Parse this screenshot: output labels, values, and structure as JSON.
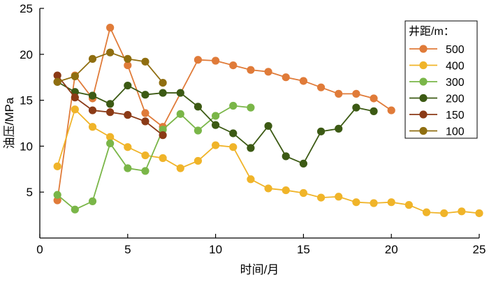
{
  "chart_data": {
    "type": "line",
    "title": "",
    "xlabel": "时间/月",
    "ylabel": "油压/MPa",
    "xlim": [
      0,
      25
    ],
    "ylim": [
      0,
      25
    ],
    "xticks": [
      0,
      5,
      10,
      15,
      20,
      25
    ],
    "yticks": [
      5,
      10,
      15,
      20,
      25
    ],
    "grid": false,
    "legend": {
      "title": "井距/m：",
      "placement": "top-right"
    },
    "series": [
      {
        "name": "500",
        "color": "#e07b39",
        "x": [
          1,
          2,
          3,
          4,
          5,
          6,
          7,
          9,
          10,
          11,
          12,
          13,
          14,
          15,
          16,
          17,
          18,
          19,
          20
        ],
        "y": [
          4.1,
          17.7,
          15.2,
          22.9,
          18.8,
          13.6,
          12.1,
          19.4,
          19.3,
          18.8,
          18.3,
          18.1,
          17.5,
          17.1,
          16.4,
          15.7,
          15.7,
          15.2,
          13.9
        ]
      },
      {
        "name": "400",
        "color": "#f0b429",
        "x": [
          1,
          2,
          3,
          4,
          5,
          6,
          7,
          8,
          9,
          10,
          11,
          12,
          13,
          14,
          15,
          16,
          17,
          18,
          19,
          20,
          21,
          22,
          23,
          24,
          25
        ],
        "y": [
          7.8,
          14.0,
          12.1,
          11.0,
          9.9,
          9.0,
          8.7,
          7.6,
          8.4,
          10.1,
          9.9,
          6.4,
          5.4,
          5.2,
          4.9,
          4.4,
          4.5,
          3.9,
          3.8,
          3.9,
          3.6,
          2.8,
          2.7,
          2.9,
          2.7
        ]
      },
      {
        "name": "300",
        "color": "#7ab648",
        "x": [
          1,
          2,
          3,
          4,
          5,
          6,
          7,
          8,
          9,
          10,
          11,
          12
        ],
        "y": [
          4.7,
          3.1,
          4.0,
          10.3,
          7.6,
          7.3,
          11.8,
          13.5,
          11.7,
          13.3,
          14.4,
          14.2
        ]
      },
      {
        "name": "200",
        "color": "#3c5a14",
        "x": [
          1,
          2,
          3,
          4,
          5,
          6,
          7,
          8,
          9,
          10,
          11,
          12,
          13,
          14,
          15,
          16,
          17,
          18,
          19
        ],
        "y": [
          17.0,
          15.9,
          15.5,
          14.6,
          16.6,
          15.6,
          15.8,
          15.8,
          14.3,
          12.3,
          11.4,
          9.8,
          12.2,
          8.9,
          8.1,
          11.6,
          11.9,
          14.2,
          13.8
        ]
      },
      {
        "name": "150",
        "color": "#8b3a16",
        "x": [
          1,
          2,
          3,
          4,
          5,
          6,
          7
        ],
        "y": [
          17.7,
          15.3,
          13.9,
          13.7,
          13.4,
          12.7,
          11.2
        ]
      },
      {
        "name": "100",
        "color": "#8f6e10",
        "x": [
          1,
          2,
          3,
          4,
          5,
          6,
          7
        ],
        "y": [
          17.0,
          17.6,
          19.5,
          20.2,
          19.5,
          19.2,
          16.9
        ]
      }
    ]
  }
}
